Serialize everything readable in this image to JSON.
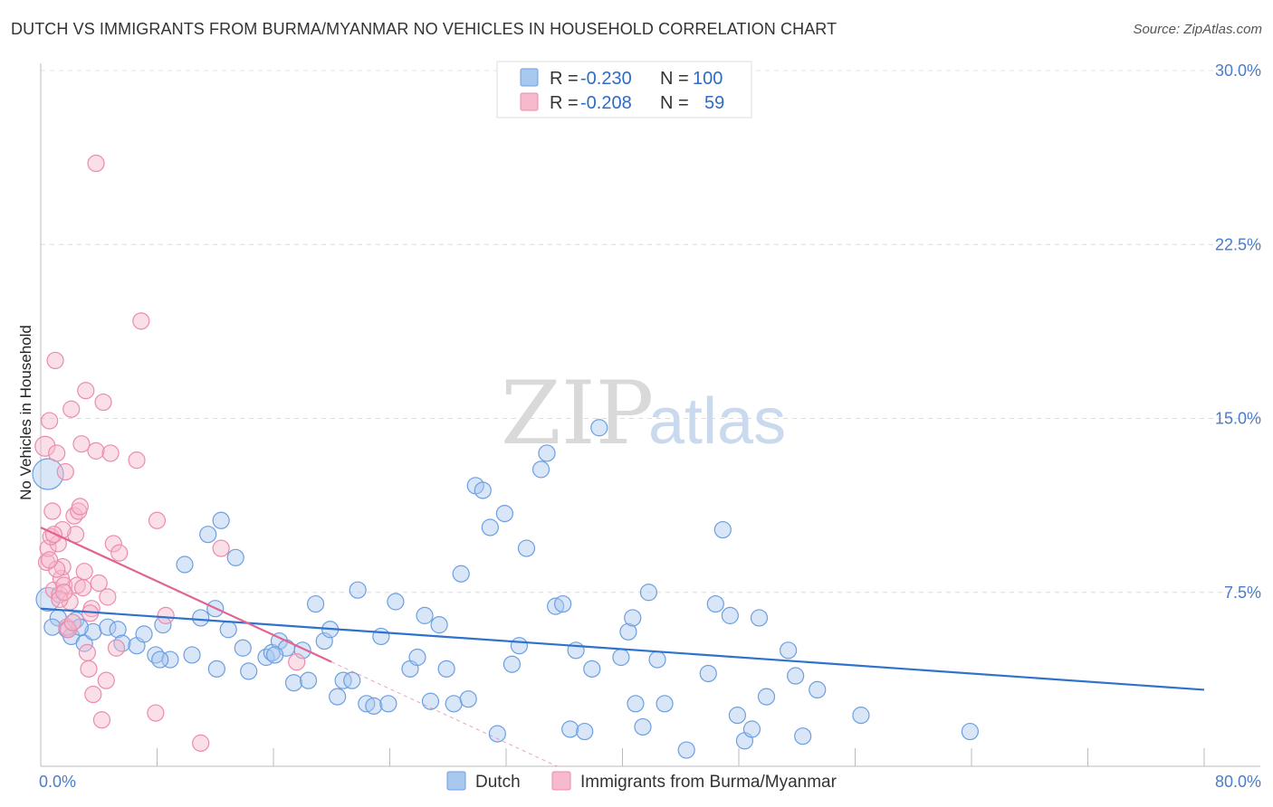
{
  "title": "DUTCH VS IMMIGRANTS FROM BURMA/MYANMAR NO VEHICLES IN HOUSEHOLD CORRELATION CHART",
  "source": "Source: ZipAtlas.com",
  "watermark": {
    "zip": "ZIP",
    "atlas": "atlas"
  },
  "legend": {
    "rows": [
      {
        "r_label": "R =",
        "r_value": "-0.230",
        "n_label": "N =",
        "n_value": "100"
      },
      {
        "r_label": "R =",
        "r_value": "-0.208",
        "n_label": "N =",
        "n_value": "59"
      }
    ]
  },
  "chart_data": {
    "type": "scatter",
    "ylabel": "No Vehicles in Household",
    "xlim": [
      0,
      80
    ],
    "ylim": [
      0,
      30
    ],
    "x_tick_labels": [
      "0.0%",
      "80.0%"
    ],
    "y_ticks": [
      {
        "value": 7.5,
        "label": "7.5%"
      },
      {
        "value": 15.0,
        "label": "15.0%"
      },
      {
        "value": 22.5,
        "label": "22.5%"
      },
      {
        "value": 30.0,
        "label": "30.0%"
      }
    ],
    "grid": "horizontal dashed",
    "legend_position": "top-center",
    "series": [
      {
        "name": "Dutch",
        "color": "#a9c8f0",
        "edge": "#6c9fe0",
        "trend_color": "#2f72cc",
        "trend": {
          "x0": 0,
          "y0": 6.8,
          "x1": 80,
          "y1": 3.3
        },
        "points": [
          [
            0.5,
            12.6
          ],
          [
            0.5,
            7.2
          ],
          [
            1.2,
            6.4
          ],
          [
            1.8,
            5.9
          ],
          [
            2.1,
            5.6
          ],
          [
            2.4,
            6.3
          ],
          [
            3.0,
            5.3
          ],
          [
            3.6,
            5.8
          ],
          [
            4.6,
            6.0
          ],
          [
            5.3,
            5.9
          ],
          [
            5.6,
            5.3
          ],
          [
            6.6,
            5.2
          ],
          [
            7.1,
            5.7
          ],
          [
            7.9,
            4.8
          ],
          [
            8.4,
            6.1
          ],
          [
            8.9,
            4.6
          ],
          [
            9.9,
            8.7
          ],
          [
            10.4,
            4.8
          ],
          [
            11.0,
            6.4
          ],
          [
            11.5,
            10.0
          ],
          [
            12.0,
            6.8
          ],
          [
            12.4,
            10.6
          ],
          [
            12.9,
            5.9
          ],
          [
            13.4,
            9.0
          ],
          [
            13.9,
            5.1
          ],
          [
            14.3,
            4.1
          ],
          [
            15.5,
            4.7
          ],
          [
            15.9,
            4.9
          ],
          [
            16.4,
            5.4
          ],
          [
            16.9,
            5.1
          ],
          [
            17.4,
            3.6
          ],
          [
            18.0,
            5.0
          ],
          [
            18.4,
            3.7
          ],
          [
            18.9,
            7.0
          ],
          [
            19.5,
            5.4
          ],
          [
            19.9,
            5.9
          ],
          [
            20.4,
            3.0
          ],
          [
            20.8,
            3.7
          ],
          [
            21.4,
            3.7
          ],
          [
            21.8,
            7.6
          ],
          [
            22.4,
            2.7
          ],
          [
            22.9,
            2.6
          ],
          [
            23.4,
            5.6
          ],
          [
            23.9,
            2.7
          ],
          [
            24.4,
            7.1
          ],
          [
            25.4,
            4.2
          ],
          [
            25.9,
            4.7
          ],
          [
            26.4,
            6.5
          ],
          [
            26.8,
            2.8
          ],
          [
            27.4,
            6.1
          ],
          [
            27.9,
            4.2
          ],
          [
            28.4,
            2.7
          ],
          [
            28.9,
            8.3
          ],
          [
            29.4,
            2.9
          ],
          [
            29.9,
            12.1
          ],
          [
            30.4,
            11.9
          ],
          [
            30.9,
            10.3
          ],
          [
            31.4,
            1.4
          ],
          [
            31.9,
            10.9
          ],
          [
            32.4,
            4.4
          ],
          [
            32.9,
            5.2
          ],
          [
            33.4,
            9.4
          ],
          [
            34.4,
            12.8
          ],
          [
            34.8,
            13.5
          ],
          [
            35.4,
            6.9
          ],
          [
            35.9,
            7.0
          ],
          [
            36.4,
            1.6
          ],
          [
            36.8,
            5.0
          ],
          [
            37.4,
            1.5
          ],
          [
            37.9,
            4.2
          ],
          [
            38.4,
            14.6
          ],
          [
            39.9,
            4.7
          ],
          [
            40.4,
            5.8
          ],
          [
            40.7,
            6.4
          ],
          [
            40.9,
            2.7
          ],
          [
            41.4,
            1.7
          ],
          [
            41.8,
            7.5
          ],
          [
            42.4,
            4.6
          ],
          [
            42.9,
            2.7
          ],
          [
            44.4,
            0.7
          ],
          [
            45.9,
            4.0
          ],
          [
            46.4,
            7.0
          ],
          [
            46.9,
            10.2
          ],
          [
            47.4,
            6.5
          ],
          [
            47.9,
            2.2
          ],
          [
            48.4,
            1.1
          ],
          [
            48.9,
            1.6
          ],
          [
            49.4,
            6.4
          ],
          [
            49.9,
            3.0
          ],
          [
            51.4,
            5.0
          ],
          [
            51.9,
            3.9
          ],
          [
            52.4,
            1.3
          ],
          [
            53.4,
            3.3
          ],
          [
            56.4,
            2.2
          ],
          [
            63.9,
            1.5
          ],
          [
            0.8,
            6.0
          ],
          [
            2.7,
            6.0
          ],
          [
            8.2,
            4.6
          ],
          [
            12.1,
            4.2
          ],
          [
            16.1,
            4.8
          ]
        ]
      },
      {
        "name": "Immigrants from Burma/Myanmar",
        "color": "#f7b9cc",
        "edge": "#ec8bab",
        "trend_color": "#e0648f",
        "trend": {
          "x0": 0,
          "y0": 10.3,
          "x1": 20,
          "y1": 4.5
        },
        "trend_extension": {
          "x0": 20,
          "y0": 4.5,
          "x1": 35.5,
          "y1": 0
        },
        "points": [
          [
            0.3,
            13.8
          ],
          [
            0.4,
            8.8
          ],
          [
            0.5,
            9.4
          ],
          [
            0.6,
            14.9
          ],
          [
            0.8,
            11.0
          ],
          [
            0.9,
            7.6
          ],
          [
            1.0,
            17.5
          ],
          [
            1.1,
            13.5
          ],
          [
            1.2,
            9.6
          ],
          [
            1.3,
            7.4
          ],
          [
            1.4,
            8.1
          ],
          [
            1.5,
            8.6
          ],
          [
            1.6,
            7.8
          ],
          [
            1.7,
            12.7
          ],
          [
            1.8,
            6.0
          ],
          [
            1.9,
            5.9
          ],
          [
            2.1,
            15.4
          ],
          [
            2.2,
            6.2
          ],
          [
            2.3,
            10.8
          ],
          [
            2.4,
            10.0
          ],
          [
            2.5,
            7.8
          ],
          [
            2.6,
            11.0
          ],
          [
            2.7,
            11.2
          ],
          [
            2.8,
            13.9
          ],
          [
            3.0,
            8.4
          ],
          [
            3.1,
            16.2
          ],
          [
            3.2,
            4.9
          ],
          [
            3.3,
            4.2
          ],
          [
            3.5,
            6.8
          ],
          [
            3.6,
            3.1
          ],
          [
            3.8,
            13.6
          ],
          [
            4.0,
            7.9
          ],
          [
            4.2,
            2.0
          ],
          [
            4.3,
            15.7
          ],
          [
            4.5,
            3.7
          ],
          [
            4.6,
            7.3
          ],
          [
            4.8,
            13.5
          ],
          [
            5.0,
            9.6
          ],
          [
            5.2,
            5.1
          ],
          [
            5.4,
            9.2
          ],
          [
            3.8,
            26.0
          ],
          [
            6.6,
            13.2
          ],
          [
            6.9,
            19.2
          ],
          [
            7.9,
            2.3
          ],
          [
            8.0,
            10.6
          ],
          [
            8.6,
            6.5
          ],
          [
            11.0,
            1.0
          ],
          [
            12.4,
            9.4
          ],
          [
            17.6,
            4.5
          ],
          [
            0.7,
            9.9
          ],
          [
            1.1,
            8.5
          ],
          [
            1.5,
            10.2
          ],
          [
            0.6,
            8.9
          ],
          [
            2.0,
            7.1
          ],
          [
            2.9,
            7.7
          ],
          [
            3.4,
            6.6
          ],
          [
            1.3,
            7.2
          ],
          [
            0.9,
            10.0
          ],
          [
            1.6,
            7.5
          ]
        ]
      }
    ]
  }
}
